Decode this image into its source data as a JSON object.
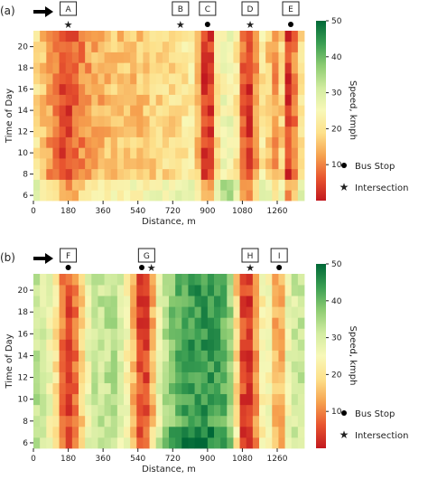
{
  "chart_data": [
    {
      "panel_label": "(a)",
      "type": "heatmap",
      "xlabel": "Distance, m",
      "ylabel": "Time of Day",
      "x_ticks": [
        0,
        180,
        360,
        540,
        720,
        900,
        1080,
        1260
      ],
      "y_ticks": [
        6,
        8,
        10,
        12,
        14,
        16,
        18,
        20
      ],
      "x_range": [
        0,
        1400
      ],
      "y_range": [
        5.5,
        21.5
      ],
      "colorbar": {
        "label": "Speed, kmph",
        "min": 0,
        "max": 50,
        "ticks": [
          10,
          20,
          30,
          40,
          50
        ],
        "colors": [
          "#c2191f",
          "#e8542f",
          "#f6a24f",
          "#fde08a",
          "#f8f8b8",
          "#d2eca0",
          "#8dcc72",
          "#3a9e52",
          "#006837"
        ]
      },
      "markers": [
        {
          "label": "A",
          "distance": 180,
          "kind": "intersection"
        },
        {
          "label": "B",
          "distance": 760,
          "kind": "intersection"
        },
        {
          "label": "C",
          "distance": 900,
          "kind": "bus_stop"
        },
        {
          "label": "D",
          "distance": 1120,
          "kind": "intersection"
        },
        {
          "label": "E",
          "distance": 1330,
          "kind": "bus_stop"
        }
      ],
      "speed_profile_kmph": {
        "distance_m": [
          0,
          60,
          120,
          160,
          200,
          240,
          300,
          420,
          540,
          660,
          760,
          820,
          860,
          880,
          900,
          920,
          950,
          1000,
          1060,
          1090,
          1100,
          1140,
          1160,
          1200,
          1240,
          1280,
          1300,
          1320,
          1340,
          1360,
          1400
        ],
        "speed": [
          22,
          15,
          8,
          4,
          5,
          10,
          13,
          16,
          16,
          18,
          20,
          22,
          14,
          4,
          3,
          4,
          20,
          28,
          20,
          4,
          3,
          4,
          20,
          22,
          10,
          20,
          6,
          3,
          4,
          16,
          22
        ]
      }
    },
    {
      "panel_label": "(b)",
      "type": "heatmap",
      "xlabel": "Distance, m",
      "ylabel": "Time of Day",
      "x_ticks": [
        0,
        180,
        360,
        540,
        720,
        900,
        1080,
        1260
      ],
      "y_ticks": [
        6,
        8,
        10,
        12,
        14,
        16,
        18,
        20
      ],
      "x_range": [
        0,
        1400
      ],
      "y_range": [
        5.5,
        21.5
      ],
      "colorbar": {
        "label": "Speed, kmph",
        "min": 0,
        "max": 50,
        "ticks": [
          10,
          20,
          30,
          40,
          50
        ],
        "colors": [
          "#c2191f",
          "#e8542f",
          "#f6a24f",
          "#fde08a",
          "#f8f8b8",
          "#d2eca0",
          "#8dcc72",
          "#3a9e52",
          "#006837"
        ]
      },
      "markers": [
        {
          "label": "F",
          "distance": 180,
          "kind": "bus_stop"
        },
        {
          "label": "G",
          "distance": 560,
          "kind": "bus_stop"
        },
        {
          "label": "G",
          "distance": 610,
          "kind": "intersection"
        },
        {
          "label": "H",
          "distance": 1120,
          "kind": "intersection"
        },
        {
          "label": "I",
          "distance": 1270,
          "kind": "bus_stop"
        }
      ],
      "speed_profile_kmph": {
        "distance_m": [
          0,
          60,
          120,
          160,
          200,
          240,
          300,
          420,
          500,
          540,
          560,
          600,
          640,
          700,
          760,
          820,
          900,
          980,
          1020,
          1060,
          1080,
          1120,
          1160,
          1200,
          1240,
          1270,
          1300,
          1340,
          1400
        ],
        "speed": [
          34,
          30,
          20,
          6,
          5,
          14,
          32,
          33,
          22,
          6,
          4,
          6,
          26,
          36,
          42,
          44,
          44,
          42,
          36,
          12,
          5,
          4,
          14,
          30,
          18,
          8,
          24,
          30,
          32
        ]
      }
    }
  ],
  "legend": {
    "bus_stop": "Bus Stop",
    "intersection": "Intersection"
  }
}
